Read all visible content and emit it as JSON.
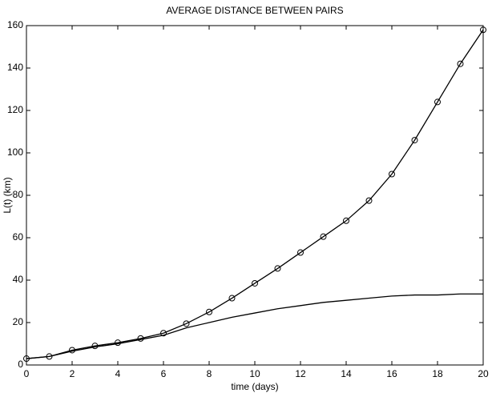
{
  "chart_data": {
    "type": "line",
    "title": "AVERAGE DISTANCE BETWEEN PAIRS",
    "x_label": "time (days)",
    "y_label": "L(t) (km)",
    "x": [
      0,
      1,
      2,
      3,
      4,
      5,
      6,
      7,
      8,
      9,
      10,
      11,
      12,
      13,
      14,
      15,
      16,
      17,
      18,
      19,
      20
    ],
    "series": [
      {
        "color": "#000000",
        "marker": "circle",
        "values": [
          3,
          4,
          7,
          9,
          10.5,
          12.5,
          15,
          19.5,
          25,
          31.5,
          38.5,
          45.5,
          53,
          60.5,
          68,
          77.5,
          90,
          106,
          124,
          142,
          158
        ]
      },
      {
        "color": "#000000",
        "marker": "none",
        "values": [
          3,
          4,
          6.5,
          8.5,
          10,
          12,
          14,
          17.5,
          20,
          22.5,
          24.5,
          26.5,
          28,
          29.5,
          30.5,
          31.5,
          32.5,
          33,
          33,
          33.5,
          33.5
        ]
      }
    ],
    "xlim": [
      0,
      20
    ],
    "xticks": [
      0,
      2,
      4,
      6,
      8,
      10,
      12,
      14,
      16,
      18,
      20
    ],
    "ylim": [
      0,
      160
    ],
    "yticks": [
      0,
      20,
      40,
      60,
      80,
      100,
      120,
      140,
      160
    ],
    "grid": false
  }
}
